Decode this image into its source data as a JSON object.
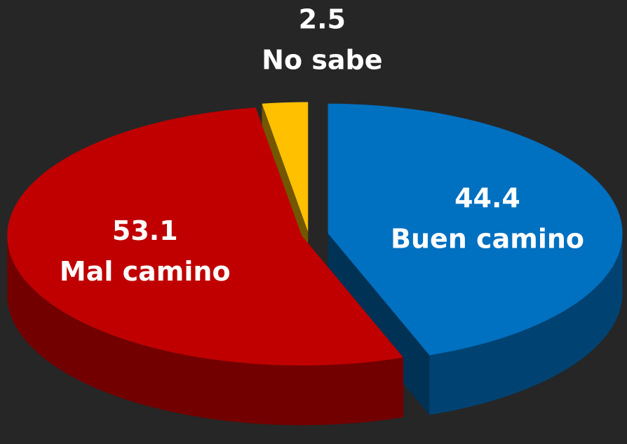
{
  "chart_data": {
    "type": "pie",
    "categories": [
      "Buen camino",
      "Mal camino",
      "No sabe"
    ],
    "values": [
      44.4,
      53.1,
      2.5
    ],
    "colors": [
      "#0070c0",
      "#c00000",
      "#ffc000"
    ]
  }
}
